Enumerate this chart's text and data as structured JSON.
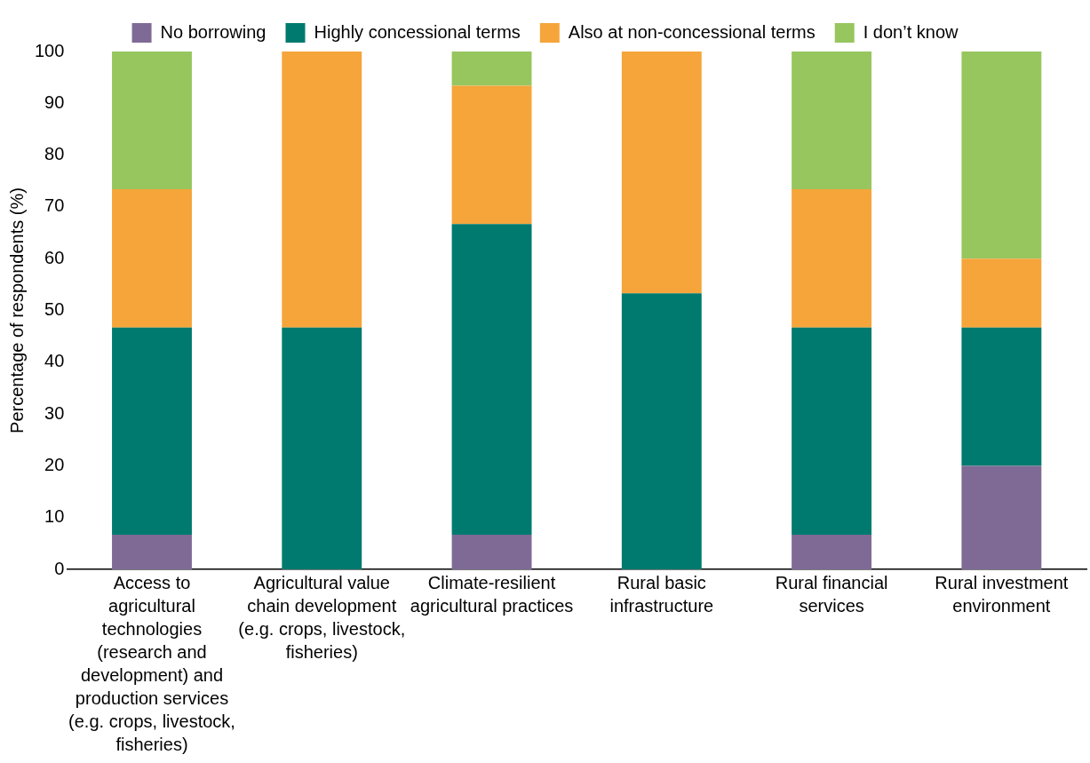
{
  "chart_data": {
    "type": "bar",
    "stacked": true,
    "ylabel": "Percentage of respondents (%)",
    "categories": [
      "Access to agricultural technologies (research and development) and production services (e.g. crops, livestock, fisheries)",
      "Agricultural value chain development (e.g. crops, livestock, fisheries)",
      "Climate-resilient agricultural practices",
      "Rural basic infrastructure",
      "Rural financial services",
      "Rural investment environment"
    ],
    "series": [
      {
        "name": "No borrowing",
        "color": "#7f6a96",
        "values": [
          6.7,
          0,
          6.7,
          0,
          6.7,
          20
        ]
      },
      {
        "name": "Highly concessional terms",
        "color": "#007a6e",
        "values": [
          40,
          46.7,
          60,
          53.3,
          40,
          26.7
        ]
      },
      {
        "name": "Also at non-concessional terms",
        "color": "#f5a53a",
        "values": [
          26.7,
          53.3,
          26.7,
          46.7,
          26.7,
          13.3
        ]
      },
      {
        "name": "I don’t know",
        "color": "#97c65f",
        "values": [
          26.6,
          0,
          6.6,
          0,
          26.6,
          40
        ]
      }
    ],
    "ylim": [
      0,
      100
    ],
    "yticks": [
      0,
      10,
      20,
      30,
      40,
      50,
      60,
      70,
      80,
      90,
      100
    ],
    "grid": false,
    "legend": "top"
  }
}
